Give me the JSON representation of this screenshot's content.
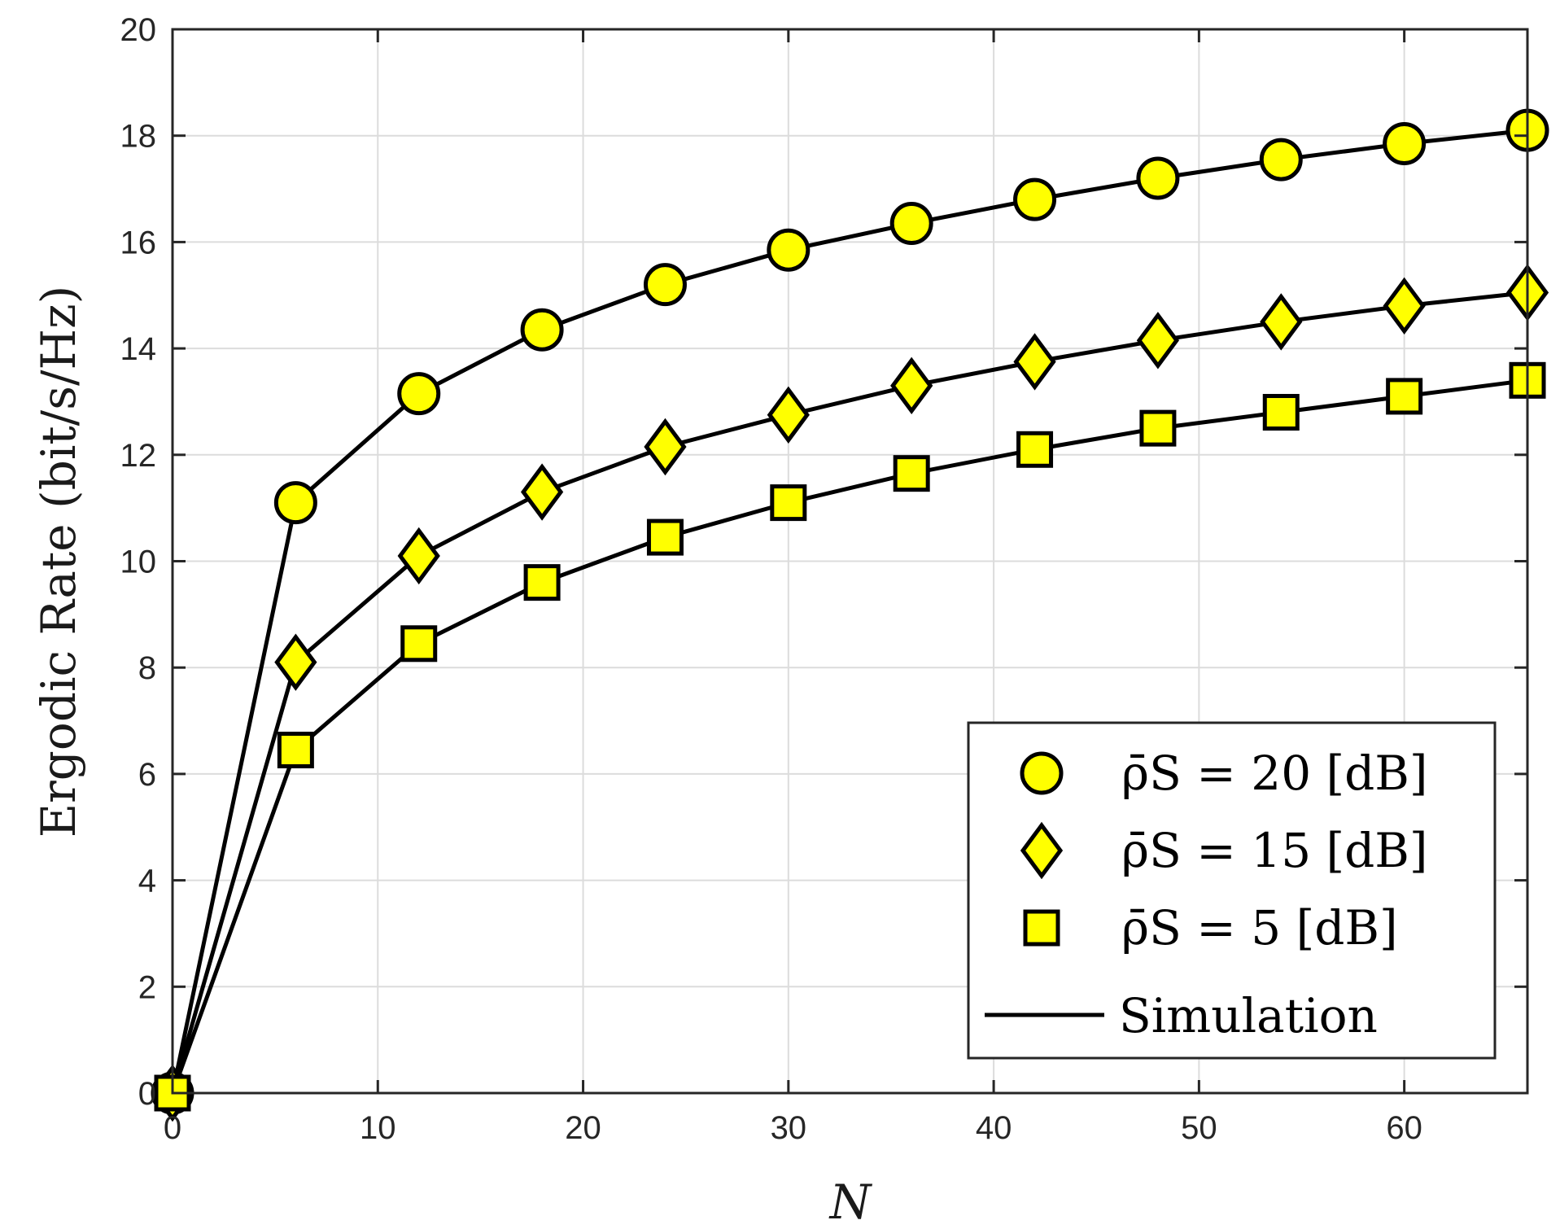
{
  "chart_data": {
    "type": "line",
    "title": "",
    "xlabel": "N",
    "ylabel": "Ergodic Rate (bit/s/Hz)",
    "xlim": [
      0,
      66
    ],
    "ylim": [
      0,
      20
    ],
    "xticks": [
      0,
      10,
      20,
      30,
      40,
      50,
      60
    ],
    "yticks": [
      0,
      2,
      4,
      6,
      8,
      10,
      12,
      14,
      16,
      18,
      20
    ],
    "grid": true,
    "legend_position": "bottom-right",
    "marker_color": "#ffff00",
    "line_color": "#000000",
    "x": [
      0,
      6,
      12,
      18,
      24,
      30,
      36,
      42,
      48,
      54,
      60,
      66
    ],
    "series": [
      {
        "name": "ρ̄S = 20 [dB]",
        "marker": "circle",
        "values": [
          0,
          11.1,
          13.15,
          14.35,
          15.2,
          15.85,
          16.35,
          16.8,
          17.2,
          17.55,
          17.85,
          18.1
        ]
      },
      {
        "name": "ρ̄S = 15 [dB]",
        "marker": "diamond",
        "values": [
          0,
          8.1,
          10.1,
          11.3,
          12.15,
          12.75,
          13.3,
          13.75,
          14.15,
          14.5,
          14.8,
          15.05
        ]
      },
      {
        "name": "ρ̄S = 5 [dB]",
        "marker": "square",
        "values": [
          0,
          6.45,
          8.45,
          9.6,
          10.45,
          11.1,
          11.65,
          12.1,
          12.5,
          12.8,
          13.1,
          13.4
        ]
      }
    ],
    "simulation_label": "Simulation"
  }
}
